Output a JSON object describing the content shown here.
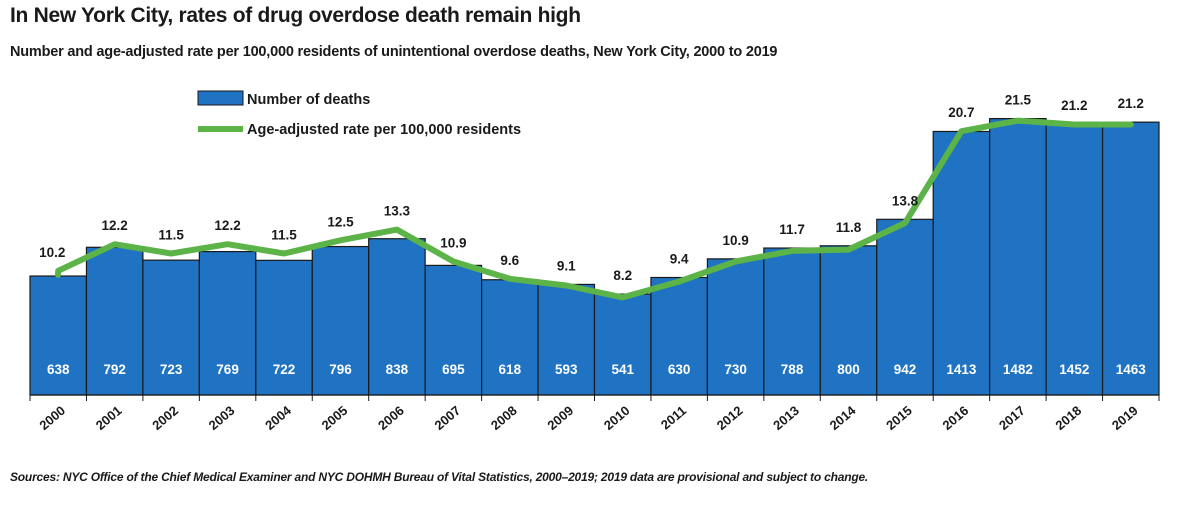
{
  "header": {
    "title": "In New York City, rates of drug overdose death remain high",
    "subtitle": "Number and age-adjusted rate per 100,000 residents of unintentional overdose deaths, New York City, 2000 to 2019"
  },
  "footer": {
    "source": "Sources: NYC Office of the Chief Medical Examiner and NYC DOHMH Bureau of Vital Statistics, 2000–2019; 2019 data are provisional and subject to change."
  },
  "colors": {
    "bar": "#1f73c2",
    "line": "#5cb348",
    "bar_label": "#ffffff"
  },
  "chart_data": {
    "type": "bar",
    "title": "In New York City, rates of drug overdose death remain high",
    "categories": [
      "2000",
      "2001",
      "2002",
      "2003",
      "2004",
      "2005",
      "2006",
      "2007",
      "2008",
      "2009",
      "2010",
      "2011",
      "2012",
      "2013",
      "2014",
      "2015",
      "2016",
      "2017",
      "2018",
      "2019"
    ],
    "series": [
      {
        "name": "Number of deaths",
        "type": "bar",
        "values": [
          638,
          792,
          723,
          769,
          722,
          796,
          838,
          695,
          618,
          593,
          541,
          630,
          730,
          788,
          800,
          942,
          1413,
          1482,
          1452,
          1463
        ]
      },
      {
        "name": "Age-adjusted rate per 100,000 residents",
        "type": "line",
        "values": [
          10.2,
          12.2,
          11.5,
          12.2,
          11.5,
          12.5,
          13.3,
          10.9,
          9.6,
          9.1,
          8.2,
          9.4,
          10.9,
          11.7,
          11.8,
          13.8,
          20.7,
          21.5,
          21.2,
          21.2
        ]
      }
    ],
    "legend_position": "top-left",
    "xlabel": "",
    "ylabel": "",
    "grid": false
  }
}
